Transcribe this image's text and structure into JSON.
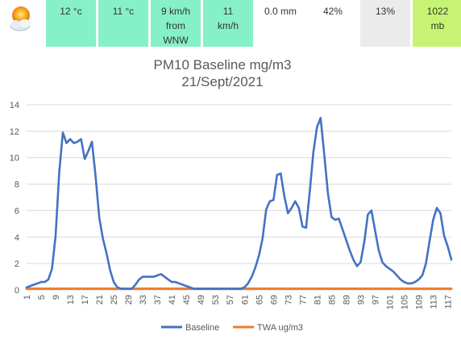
{
  "weather": {
    "icon": "partly-cloudy-sun-icon",
    "cells": [
      {
        "lines": [
          "12 °c"
        ],
        "bg": "#86f0c8"
      },
      {
        "lines": [
          "11 °c"
        ],
        "bg": "#86f0c8"
      },
      {
        "lines": [
          "9 km/h",
          "from",
          "WNW"
        ],
        "bg": "#86f0c8"
      },
      {
        "lines": [
          "11",
          "km/h"
        ],
        "bg": "#86f0c8"
      },
      {
        "lines": [
          "0.0 mm"
        ],
        "bg": "#ffffff"
      },
      {
        "lines": [
          "42%"
        ],
        "bg": "#ffffff"
      },
      {
        "lines": [
          "13%"
        ],
        "bg": "#ebebeb"
      },
      {
        "lines": [
          "1022",
          "mb"
        ],
        "bg": "#c6f472"
      }
    ]
  },
  "chart_data": {
    "type": "line",
    "title": "PM10 Baseline mg/m3",
    "subtitle": "21/Sept/2021",
    "xlabel": "",
    "ylabel": "",
    "ylim": [
      0,
      14
    ],
    "yticks": [
      0,
      2,
      4,
      6,
      8,
      10,
      12,
      14
    ],
    "xticks": [
      1,
      5,
      9,
      13,
      17,
      21,
      25,
      29,
      33,
      37,
      41,
      45,
      49,
      53,
      57,
      61,
      65,
      69,
      73,
      77,
      81,
      85,
      89,
      93,
      97,
      101,
      105,
      109,
      113,
      117
    ],
    "grid": true,
    "legend_position": "bottom",
    "series": [
      {
        "name": "Baseline",
        "color": "#4472c4",
        "x": [
          1,
          2,
          3,
          4,
          5,
          6,
          7,
          8,
          9,
          10,
          11,
          12,
          13,
          14,
          15,
          16,
          17,
          18,
          19,
          20,
          21,
          22,
          23,
          24,
          25,
          26,
          27,
          28,
          29,
          30,
          31,
          32,
          33,
          34,
          35,
          36,
          37,
          38,
          39,
          40,
          41,
          42,
          43,
          44,
          45,
          46,
          47,
          48,
          49,
          50,
          51,
          52,
          53,
          54,
          55,
          56,
          57,
          58,
          59,
          60,
          61,
          62,
          63,
          64,
          65,
          66,
          67,
          68,
          69,
          70,
          71,
          72,
          73,
          74,
          75,
          76,
          77,
          78,
          79,
          80,
          81,
          82,
          83,
          84,
          85,
          86,
          87,
          88,
          89,
          90,
          91,
          92,
          93,
          94,
          95,
          96,
          97,
          98,
          99,
          100,
          101,
          102,
          103,
          104,
          105,
          106,
          107,
          108,
          109,
          110,
          111,
          112,
          113,
          114,
          115,
          116,
          117,
          118
        ],
        "values": [
          0.2,
          0.3,
          0.4,
          0.5,
          0.6,
          0.6,
          0.8,
          1.6,
          4.1,
          8.9,
          11.9,
          11.1,
          11.4,
          11.1,
          11.2,
          11.4,
          9.9,
          10.5,
          11.2,
          8.6,
          5.5,
          3.9,
          2.8,
          1.5,
          0.6,
          0.2,
          0.1,
          0.1,
          0.1,
          0.1,
          0.4,
          0.8,
          1.0,
          1.0,
          1.0,
          1.0,
          1.1,
          1.2,
          1.0,
          0.8,
          0.6,
          0.6,
          0.5,
          0.4,
          0.3,
          0.2,
          0.1,
          0.1,
          0.1,
          0.1,
          0.1,
          0.1,
          0.1,
          0.1,
          0.1,
          0.1,
          0.1,
          0.1,
          0.1,
          0.1,
          0.2,
          0.5,
          1.0,
          1.7,
          2.6,
          3.9,
          6.1,
          6.7,
          6.8,
          8.7,
          8.8,
          7.1,
          5.8,
          6.2,
          6.7,
          6.2,
          4.8,
          4.7,
          7.4,
          10.4,
          12.3,
          13.0,
          10.2,
          7.3,
          5.5,
          5.3,
          5.4,
          4.6,
          3.8,
          3.0,
          2.3,
          1.8,
          2.1,
          3.6,
          5.7,
          6.0,
          4.5,
          3.0,
          2.1,
          1.8,
          1.6,
          1.4,
          1.1,
          0.8,
          0.6,
          0.5,
          0.5,
          0.6,
          0.8,
          1.1,
          2.0,
          3.7,
          5.3,
          6.2,
          5.8,
          4.1,
          3.3,
          2.3
        ]
      },
      {
        "name": "TWA ug/m3",
        "color": "#ed7d31",
        "x": [
          1,
          118
        ],
        "values": [
          0.1,
          0.1
        ]
      }
    ]
  }
}
